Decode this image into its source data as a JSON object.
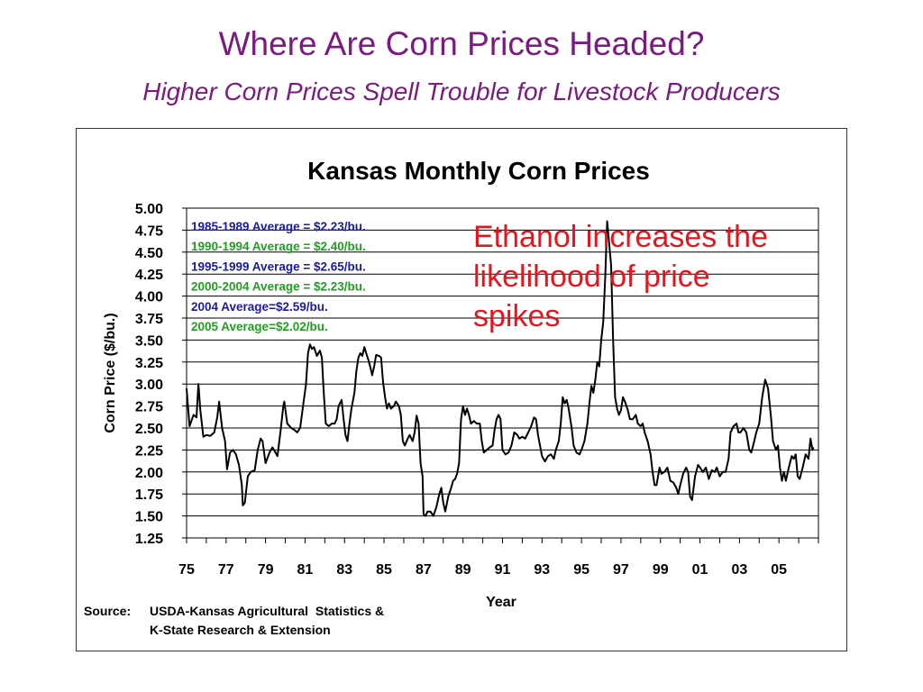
{
  "slide": {
    "title": "Where Are Corn Prices Headed?",
    "subtitle": "Higher Corn Prices Spell Trouble for Livestock Producers",
    "annotation_lines": [
      "Ethanol increases the",
      "likelihood of price",
      "spikes"
    ],
    "annotation_color": "#e8141c",
    "source_label": "Source:",
    "source_lines": [
      "USDA-Kansas Agricultural  Statistics &",
      "K-State Research & Extension"
    ]
  },
  "chart_data": {
    "type": "line",
    "title": "Kansas Monthly Corn Prices",
    "xlabel": "Year",
    "ylabel": "Corn Price ($/bu.)",
    "ylim": [
      1.25,
      5.0
    ],
    "yticks": [
      "5.00",
      "4.75",
      "4.50",
      "4.25",
      "4.00",
      "3.75",
      "3.50",
      "3.25",
      "3.00",
      "2.75",
      "2.50",
      "2.25",
      "2.00",
      "1.75",
      "1.50",
      "1.25"
    ],
    "xlim": [
      1975,
      2007
    ],
    "xticks": [
      {
        "label": "75",
        "year": 1975
      },
      {
        "label": "77",
        "year": 1977
      },
      {
        "label": "79",
        "year": 1979
      },
      {
        "label": "81",
        "year": 1981
      },
      {
        "label": "83",
        "year": 1983
      },
      {
        "label": "85",
        "year": 1985
      },
      {
        "label": "87",
        "year": 1987
      },
      {
        "label": "89",
        "year": 1989
      },
      {
        "label": "91",
        "year": 1991
      },
      {
        "label": "93",
        "year": 1993
      },
      {
        "label": "95",
        "year": 1995
      },
      {
        "label": "97",
        "year": 1997
      },
      {
        "label": "99",
        "year": 1999
      },
      {
        "label": "01",
        "year": 2001
      },
      {
        "label": "03",
        "year": 2003
      },
      {
        "label": "05",
        "year": 2005
      }
    ],
    "grid": true,
    "averages": [
      {
        "text": "1985-1989 Average = $2.23/bu.",
        "color": "#1a1aa6"
      },
      {
        "text": "1990-1994 Average = $2.40/bu.",
        "color": "#1fa01f"
      },
      {
        "text": "1995-1999 Average = $2.65/bu.",
        "color": "#1a1aa6"
      },
      {
        "text": "2000-2004 Average = $2.23/bu.",
        "color": "#1fa01f"
      },
      {
        "text": "2004 Average=$2.59/bu.",
        "color": "#1a1aa6"
      },
      {
        "text": "2005 Average=$2.02/bu.",
        "color": "#1fa01f"
      }
    ],
    "series": [
      {
        "color": "#000000",
        "points": [
          [
            1975.0,
            2.95
          ],
          [
            1975.15,
            2.52
          ],
          [
            1975.35,
            2.65
          ],
          [
            1975.5,
            2.62
          ],
          [
            1975.6,
            3.0
          ],
          [
            1975.7,
            2.7
          ],
          [
            1975.85,
            2.4
          ],
          [
            1976.0,
            2.42
          ],
          [
            1976.2,
            2.41
          ],
          [
            1976.4,
            2.45
          ],
          [
            1976.55,
            2.62
          ],
          [
            1976.65,
            2.8
          ],
          [
            1976.8,
            2.5
          ],
          [
            1976.95,
            2.35
          ],
          [
            1977.05,
            2.03
          ],
          [
            1977.2,
            2.22
          ],
          [
            1977.35,
            2.25
          ],
          [
            1977.5,
            2.2
          ],
          [
            1977.65,
            2.08
          ],
          [
            1977.8,
            1.85
          ],
          [
            1977.85,
            1.62
          ],
          [
            1977.95,
            1.65
          ],
          [
            1978.1,
            1.95
          ],
          [
            1978.25,
            2.0
          ],
          [
            1978.45,
            2.02
          ],
          [
            1978.6,
            2.25
          ],
          [
            1978.75,
            2.38
          ],
          [
            1978.85,
            2.35
          ],
          [
            1979.0,
            2.1
          ],
          [
            1979.2,
            2.22
          ],
          [
            1979.35,
            2.28
          ],
          [
            1979.5,
            2.22
          ],
          [
            1979.6,
            2.18
          ],
          [
            1979.75,
            2.45
          ],
          [
            1979.9,
            2.75
          ],
          [
            1979.95,
            2.8
          ],
          [
            1980.1,
            2.55
          ],
          [
            1980.3,
            2.5
          ],
          [
            1980.45,
            2.48
          ],
          [
            1980.6,
            2.45
          ],
          [
            1980.75,
            2.5
          ],
          [
            1980.9,
            2.75
          ],
          [
            1981.05,
            3.0
          ],
          [
            1981.15,
            3.35
          ],
          [
            1981.25,
            3.45
          ],
          [
            1981.35,
            3.4
          ],
          [
            1981.45,
            3.42
          ],
          [
            1981.6,
            3.32
          ],
          [
            1981.75,
            3.38
          ],
          [
            1981.85,
            3.3
          ],
          [
            1981.95,
            2.9
          ],
          [
            1982.05,
            2.55
          ],
          [
            1982.2,
            2.52
          ],
          [
            1982.35,
            2.55
          ],
          [
            1982.5,
            2.55
          ],
          [
            1982.6,
            2.6
          ],
          [
            1982.7,
            2.75
          ],
          [
            1982.85,
            2.82
          ],
          [
            1982.95,
            2.6
          ],
          [
            1983.05,
            2.42
          ],
          [
            1983.15,
            2.35
          ],
          [
            1983.25,
            2.55
          ],
          [
            1983.35,
            2.72
          ],
          [
            1983.5,
            2.9
          ],
          [
            1983.6,
            3.15
          ],
          [
            1983.7,
            3.3
          ],
          [
            1983.8,
            3.35
          ],
          [
            1983.9,
            3.32
          ],
          [
            1984.0,
            3.42
          ],
          [
            1984.1,
            3.35
          ],
          [
            1984.2,
            3.28
          ],
          [
            1984.3,
            3.2
          ],
          [
            1984.4,
            3.1
          ],
          [
            1984.5,
            3.2
          ],
          [
            1984.6,
            3.33
          ],
          [
            1984.75,
            3.32
          ],
          [
            1984.85,
            3.3
          ],
          [
            1984.95,
            3.02
          ],
          [
            1985.05,
            2.85
          ],
          [
            1985.15,
            2.72
          ],
          [
            1985.25,
            2.78
          ],
          [
            1985.35,
            2.72
          ],
          [
            1985.5,
            2.75
          ],
          [
            1985.6,
            2.8
          ],
          [
            1985.75,
            2.75
          ],
          [
            1985.85,
            2.65
          ],
          [
            1985.95,
            2.35
          ],
          [
            1986.05,
            2.3
          ],
          [
            1986.2,
            2.38
          ],
          [
            1986.3,
            2.42
          ],
          [
            1986.45,
            2.35
          ],
          [
            1986.55,
            2.45
          ],
          [
            1986.65,
            2.64
          ],
          [
            1986.75,
            2.55
          ],
          [
            1986.85,
            2.1
          ],
          [
            1986.95,
            1.95
          ],
          [
            1987.0,
            1.52
          ],
          [
            1987.1,
            1.5
          ],
          [
            1987.2,
            1.55
          ],
          [
            1987.35,
            1.55
          ],
          [
            1987.5,
            1.5
          ],
          [
            1987.65,
            1.6
          ],
          [
            1987.8,
            1.75
          ],
          [
            1987.9,
            1.82
          ],
          [
            1988.0,
            1.65
          ],
          [
            1988.1,
            1.55
          ],
          [
            1988.25,
            1.72
          ],
          [
            1988.4,
            1.82
          ],
          [
            1988.5,
            1.9
          ],
          [
            1988.6,
            1.92
          ],
          [
            1988.7,
            1.98
          ],
          [
            1988.8,
            2.1
          ],
          [
            1988.9,
            2.6
          ],
          [
            1989.0,
            2.75
          ],
          [
            1989.1,
            2.65
          ],
          [
            1989.2,
            2.72
          ],
          [
            1989.3,
            2.65
          ],
          [
            1989.4,
            2.55
          ],
          [
            1989.55,
            2.58
          ],
          [
            1989.7,
            2.55
          ],
          [
            1989.85,
            2.55
          ],
          [
            1989.95,
            2.35
          ],
          [
            1990.05,
            2.22
          ],
          [
            1990.2,
            2.25
          ],
          [
            1990.35,
            2.28
          ],
          [
            1990.5,
            2.3
          ],
          [
            1990.6,
            2.48
          ],
          [
            1990.7,
            2.6
          ],
          [
            1990.8,
            2.65
          ],
          [
            1990.9,
            2.6
          ],
          [
            1991.0,
            2.25
          ],
          [
            1991.15,
            2.2
          ],
          [
            1991.3,
            2.22
          ],
          [
            1991.45,
            2.3
          ],
          [
            1991.6,
            2.45
          ],
          [
            1991.75,
            2.42
          ],
          [
            1991.85,
            2.38
          ],
          [
            1992.0,
            2.4
          ],
          [
            1992.15,
            2.38
          ],
          [
            1992.3,
            2.45
          ],
          [
            1992.45,
            2.52
          ],
          [
            1992.6,
            2.62
          ],
          [
            1992.7,
            2.6
          ],
          [
            1992.8,
            2.42
          ],
          [
            1992.9,
            2.3
          ],
          [
            1993.0,
            2.18
          ],
          [
            1993.15,
            2.12
          ],
          [
            1993.3,
            2.18
          ],
          [
            1993.45,
            2.2
          ],
          [
            1993.6,
            2.15
          ],
          [
            1993.7,
            2.25
          ],
          [
            1993.85,
            2.35
          ],
          [
            1993.95,
            2.55
          ],
          [
            1994.05,
            2.85
          ],
          [
            1994.15,
            2.78
          ],
          [
            1994.25,
            2.82
          ],
          [
            1994.35,
            2.72
          ],
          [
            1994.5,
            2.5
          ],
          [
            1994.6,
            2.3
          ],
          [
            1994.75,
            2.22
          ],
          [
            1994.9,
            2.2
          ],
          [
            1995.0,
            2.25
          ],
          [
            1995.15,
            2.35
          ],
          [
            1995.3,
            2.55
          ],
          [
            1995.4,
            2.78
          ],
          [
            1995.5,
            2.98
          ],
          [
            1995.6,
            2.9
          ],
          [
            1995.7,
            3.05
          ],
          [
            1995.8,
            3.25
          ],
          [
            1995.9,
            3.2
          ],
          [
            1996.0,
            3.5
          ],
          [
            1996.1,
            3.7
          ],
          [
            1996.2,
            4.2
          ],
          [
            1996.3,
            4.85
          ],
          [
            1996.4,
            4.6
          ],
          [
            1996.5,
            4.35
          ],
          [
            1996.6,
            3.5
          ],
          [
            1996.7,
            2.85
          ],
          [
            1996.8,
            2.72
          ],
          [
            1996.9,
            2.65
          ],
          [
            1997.0,
            2.7
          ],
          [
            1997.1,
            2.85
          ],
          [
            1997.2,
            2.8
          ],
          [
            1997.35,
            2.7
          ],
          [
            1997.45,
            2.6
          ],
          [
            1997.6,
            2.6
          ],
          [
            1997.75,
            2.65
          ],
          [
            1997.85,
            2.55
          ],
          [
            1998.0,
            2.52
          ],
          [
            1998.1,
            2.55
          ],
          [
            1998.2,
            2.45
          ],
          [
            1998.35,
            2.35
          ],
          [
            1998.5,
            2.2
          ],
          [
            1998.6,
            2.0
          ],
          [
            1998.7,
            1.85
          ],
          [
            1998.8,
            1.85
          ],
          [
            1998.95,
            2.05
          ],
          [
            1999.05,
            1.98
          ],
          [
            1999.2,
            2.0
          ],
          [
            1999.35,
            2.05
          ],
          [
            1999.5,
            1.9
          ],
          [
            1999.65,
            1.88
          ],
          [
            1999.8,
            1.82
          ],
          [
            1999.9,
            1.75
          ],
          [
            2000.0,
            1.85
          ],
          [
            2000.15,
            1.98
          ],
          [
            2000.3,
            2.05
          ],
          [
            2000.4,
            2.0
          ],
          [
            2000.5,
            1.72
          ],
          [
            2000.6,
            1.68
          ],
          [
            2000.75,
            1.95
          ],
          [
            2000.9,
            2.08
          ],
          [
            2001.0,
            2.05
          ],
          [
            2001.15,
            2.0
          ],
          [
            2001.3,
            2.05
          ],
          [
            2001.45,
            1.92
          ],
          [
            2001.6,
            2.02
          ],
          [
            2001.75,
            2.0
          ],
          [
            2001.85,
            2.05
          ],
          [
            2002.0,
            1.95
          ],
          [
            2002.15,
            2.0
          ],
          [
            2002.3,
            2.0
          ],
          [
            2002.45,
            2.15
          ],
          [
            2002.55,
            2.45
          ],
          [
            2002.7,
            2.52
          ],
          [
            2002.85,
            2.55
          ],
          [
            2002.95,
            2.45
          ],
          [
            2003.05,
            2.45
          ],
          [
            2003.2,
            2.5
          ],
          [
            2003.35,
            2.45
          ],
          [
            2003.5,
            2.25
          ],
          [
            2003.6,
            2.22
          ],
          [
            2003.75,
            2.35
          ],
          [
            2003.85,
            2.45
          ],
          [
            2004.0,
            2.55
          ],
          [
            2004.15,
            2.85
          ],
          [
            2004.3,
            3.05
          ],
          [
            2004.45,
            2.95
          ],
          [
            2004.6,
            2.62
          ],
          [
            2004.7,
            2.35
          ],
          [
            2004.85,
            2.25
          ],
          [
            2004.95,
            2.3
          ],
          [
            2005.05,
            2.05
          ],
          [
            2005.15,
            1.9
          ],
          [
            2005.25,
            2.0
          ],
          [
            2005.35,
            1.9
          ],
          [
            2005.5,
            2.05
          ],
          [
            2005.65,
            2.18
          ],
          [
            2005.75,
            2.15
          ],
          [
            2005.85,
            2.2
          ],
          [
            2005.95,
            1.95
          ],
          [
            2006.05,
            1.92
          ],
          [
            2006.2,
            2.05
          ],
          [
            2006.35,
            2.2
          ],
          [
            2006.5,
            2.15
          ],
          [
            2006.6,
            2.38
          ],
          [
            2006.7,
            2.25
          ],
          [
            2006.75,
            2.28
          ]
        ]
      }
    ]
  }
}
